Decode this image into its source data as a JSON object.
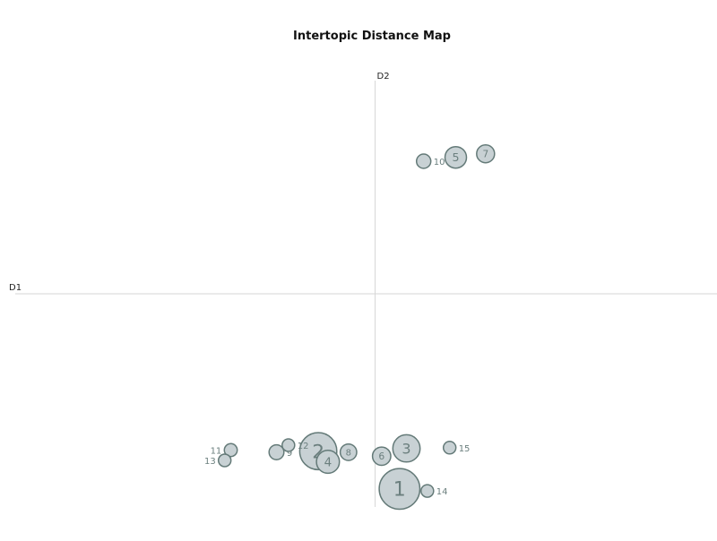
{
  "chart_data": {
    "type": "scatter",
    "title": "Intertopic Distance Map",
    "xlabel": "D1",
    "ylabel": "D2",
    "xlim": [
      -1.0,
      0.95
    ],
    "ylim": [
      -0.6,
      0.6
    ],
    "grid": false,
    "marker_color": "#c8d1d4",
    "marker_edge_color": "#647a78",
    "label_color": "#6b7f7e",
    "axis_color": "#d6d6d6",
    "points": [
      {
        "label": "1",
        "x": 0.068,
        "y": -0.549,
        "size": 2000
      },
      {
        "label": "2",
        "x": -0.158,
        "y": -0.443,
        "size": 1660
      },
      {
        "label": "3",
        "x": 0.087,
        "y": -0.435,
        "size": 900
      },
      {
        "label": "4",
        "x": -0.131,
        "y": -0.473,
        "size": 640
      },
      {
        "label": "5",
        "x": 0.224,
        "y": 0.384,
        "size": 560
      },
      {
        "label": "6",
        "x": 0.018,
        "y": -0.457,
        "size": 400
      },
      {
        "label": "7",
        "x": 0.307,
        "y": 0.394,
        "size": 390
      },
      {
        "label": "8",
        "x": -0.074,
        "y": -0.446,
        "size": 330
      },
      {
        "label": "9",
        "x": -0.274,
        "y": -0.446,
        "size": 270
      },
      {
        "label": "10",
        "x": 0.135,
        "y": 0.373,
        "size": 250
      },
      {
        "label": "11",
        "x": -0.401,
        "y": -0.44,
        "size": 200
      },
      {
        "label": "12",
        "x": -0.241,
        "y": -0.426,
        "size": 190
      },
      {
        "label": "13",
        "x": -0.418,
        "y": -0.469,
        "size": 190
      },
      {
        "label": "14",
        "x": 0.145,
        "y": -0.555,
        "size": 190
      },
      {
        "label": "15",
        "x": 0.207,
        "y": -0.433,
        "size": 190
      }
    ]
  }
}
